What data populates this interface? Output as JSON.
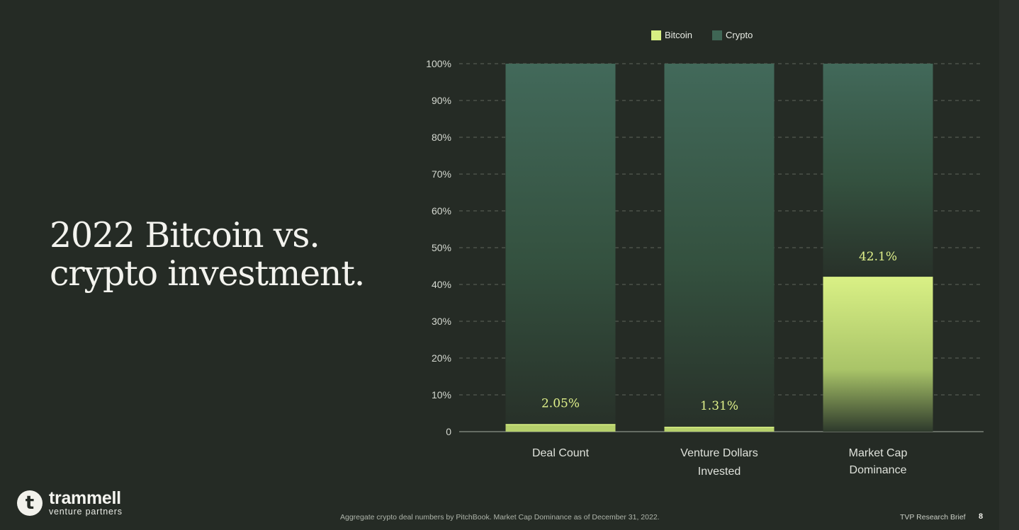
{
  "slide": {
    "title_lines": [
      "2022 Bitcoin vs.",
      "crypto investment."
    ],
    "footnote": "Aggregate crypto deal numbers by PitchBook. Market Cap Dominance as of December 31, 2022.",
    "brief_label": "TVP Research Brief",
    "page_number": "8"
  },
  "logo": {
    "name": "trammell",
    "subtitle": "venture partners",
    "icon": "trammell-t-logo-icon"
  },
  "colors": {
    "background": "#252b25",
    "bitcoin": "#d7ef83",
    "crypto": "#3f6655",
    "label": "#dff08a",
    "grid": "#5e655c"
  },
  "chart_data": {
    "type": "bar",
    "stacked": true,
    "categories": [
      [
        "Deal Count"
      ],
      [
        "Venture Dollars",
        "Invested"
      ],
      [
        "Market Cap",
        "Dominance"
      ]
    ],
    "series": [
      {
        "name": "Bitcoin",
        "values": [
          2.05,
          1.31,
          42.1
        ]
      },
      {
        "name": "Crypto",
        "values": [
          97.95,
          98.69,
          57.9
        ]
      }
    ],
    "data_labels": [
      "2.05%",
      "1.31%",
      "42.1%"
    ],
    "yticks": [
      "0",
      "10%",
      "20%",
      "30%",
      "40%",
      "50%",
      "60%",
      "70%",
      "80%",
      "90%",
      "100%"
    ],
    "ylim": [
      0,
      100
    ],
    "grid": true,
    "legend": "top-center"
  }
}
